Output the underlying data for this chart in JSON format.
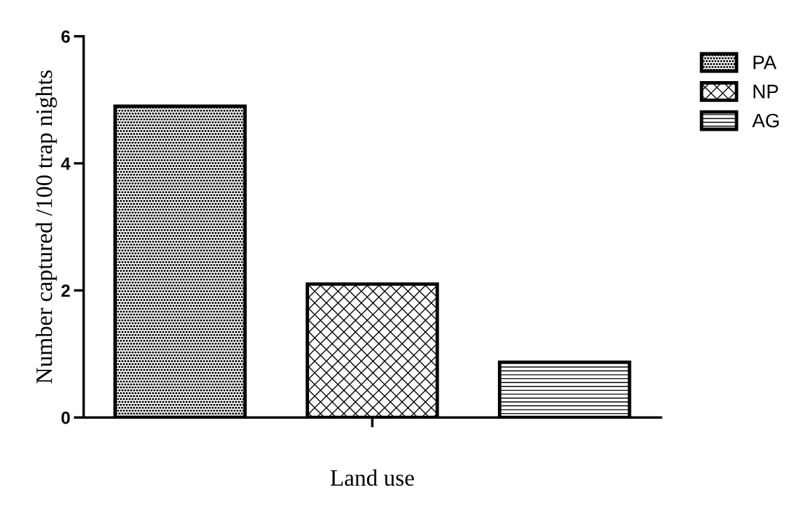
{
  "chart_data": {
    "type": "bar",
    "xlabel": "Land use",
    "ylabel": "Number captured /100 trap nights",
    "categories": [
      null
    ],
    "series": [
      {
        "name": "PA",
        "color": "#000000",
        "values": [
          4.9
        ]
      },
      {
        "name": "NP",
        "color": "#000000",
        "values": [
          2.1
        ]
      },
      {
        "name": "AG",
        "color": "#000000",
        "values": [
          0.87
        ]
      }
    ],
    "ylim": [
      0,
      6
    ],
    "yticks": [
      0,
      2,
      4,
      6
    ],
    "legend": "right",
    "grid": false
  }
}
